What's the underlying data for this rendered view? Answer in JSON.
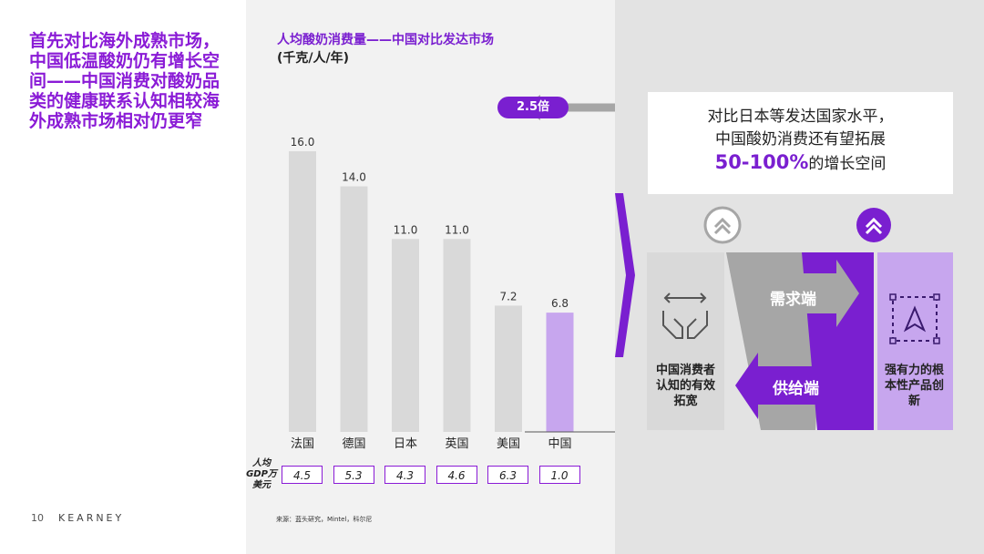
{
  "left": {
    "title": "首先对比海外成熟市场，中国低温酸奶仍有增长空间——中国消费对酸奶品类的健康联系认知相较海外成熟市场相对仍更窄"
  },
  "footer": {
    "page": "10",
    "brand": "KEARNEY"
  },
  "chart_data": {
    "type": "bar",
    "title": "人均酸奶消费量——中国对比发达市场",
    "unit": "(千克/人/年)",
    "categories": [
      "法国",
      "德国",
      "日本",
      "英国",
      "美国",
      "中国"
    ],
    "values": [
      16.0,
      14.0,
      11.0,
      11.0,
      7.2,
      6.8
    ],
    "value_labels": [
      "16.0",
      "14.0",
      "11.0",
      "11.0",
      "7.2",
      "6.8"
    ],
    "ylim": [
      0,
      18
    ],
    "highlight_index": 5,
    "bar_color": "#d9d9d9",
    "highlight_color": "#c7a6ee",
    "multiplier_label": "2.5倍",
    "gdp_label": "人均GDP万美元",
    "gdp_values": [
      "4.5",
      "5.3",
      "4.3",
      "4.6",
      "6.3",
      "1.0"
    ],
    "source": "来源：蓝头研究，Mintel，科尔尼"
  },
  "right": {
    "callout_line1": "对比日本等发达国家水平，",
    "callout_line2": "中国酸奶消费还有望拓展",
    "callout_highlight": "50-100%",
    "callout_tail": "的增长空间",
    "demand_label": "需求端",
    "supply_label": "供给端",
    "left_caption": "中国消费者认知的有效拓宽",
    "right_caption": "强有力的根本性产品创新"
  },
  "colors": {
    "purple": "#7a1fd0",
    "light_purple": "#c7a6ee",
    "grey_bar": "#d9d9d9"
  }
}
